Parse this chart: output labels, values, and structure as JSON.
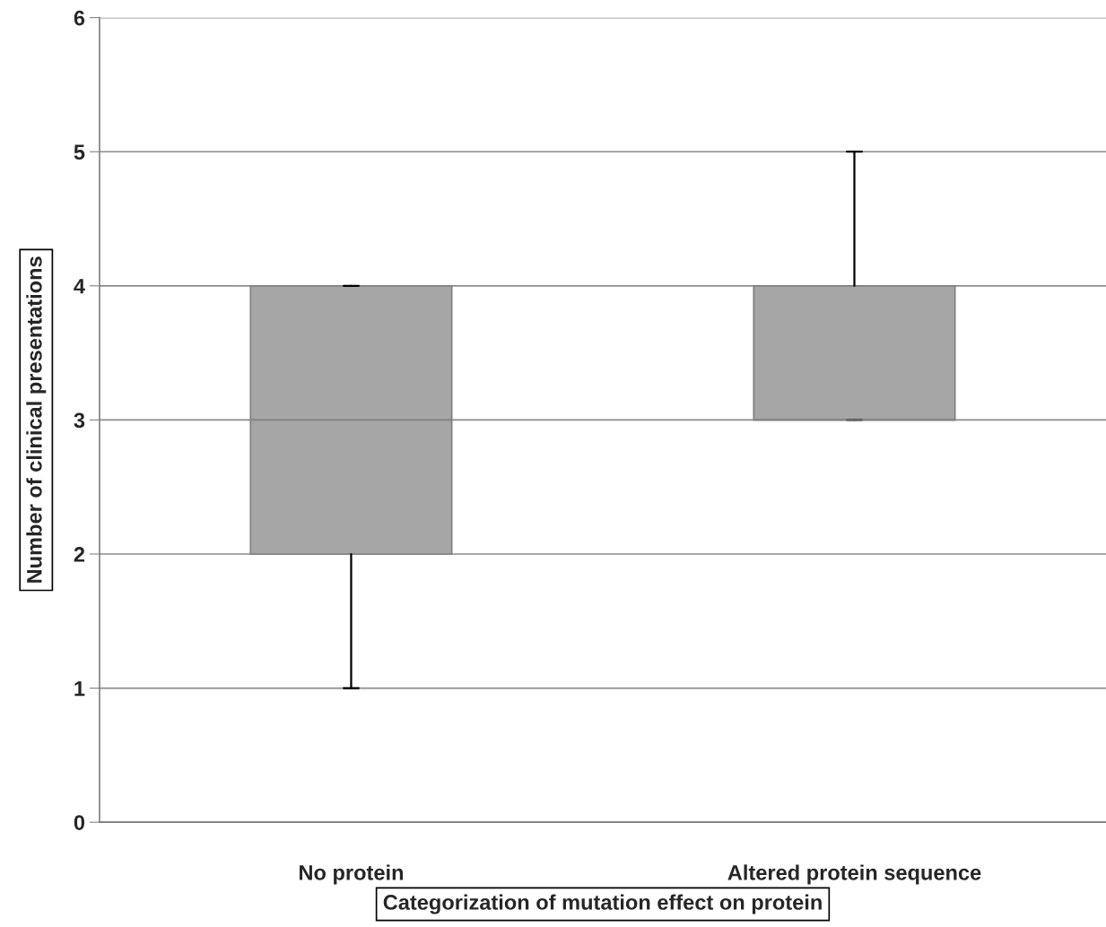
{
  "chart_data": {
    "type": "box",
    "xlabel": "Categorization of mutation effect on protein",
    "ylabel": "Number of clinical presentations",
    "categories": [
      "No protein",
      "Altered protein sequence"
    ],
    "boxes": [
      {
        "low": 1,
        "q1": 2,
        "median": 3,
        "q3": 4,
        "high": 4
      },
      {
        "low": 3,
        "q1": 3,
        "median": 3,
        "q3": 4,
        "high": 5
      }
    ],
    "color": "#a6a6a6",
    "ylim": [
      0,
      6
    ],
    "yticks": [
      0,
      1,
      2,
      3,
      4,
      5,
      6
    ],
    "grid": "y"
  }
}
